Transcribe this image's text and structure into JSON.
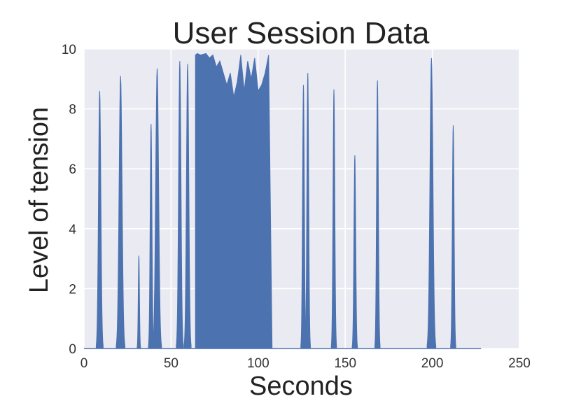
{
  "chart_data": {
    "type": "area",
    "title": "User Session Data",
    "xlabel": "Seconds",
    "ylabel": "Level of tension",
    "xlim": [
      0,
      250
    ],
    "ylim": [
      0,
      10
    ],
    "xticks": [
      "0",
      "50",
      "100",
      "150",
      "200",
      "250"
    ],
    "yticks": [
      "0",
      "2",
      "4",
      "6",
      "8",
      "10"
    ],
    "grid": true,
    "background_color": "#eaeaf2",
    "fill_color": "#4c72b0",
    "x_end": 228,
    "peaks": [
      {
        "center": 9,
        "height": 8.6,
        "half_width": 2
      },
      {
        "center": 21,
        "height": 9.1,
        "half_width": 2.5
      },
      {
        "center": 31.5,
        "height": 3.1,
        "half_width": 1
      },
      {
        "center": 38.5,
        "height": 7.5,
        "half_width": 1.5
      },
      {
        "center": 42,
        "height": 9.35,
        "half_width": 2.5
      },
      {
        "center": 55,
        "height": 9.6,
        "half_width": 2
      },
      {
        "center": 59.5,
        "height": 9.5,
        "half_width": 2
      },
      {
        "center": 126,
        "height": 8.8,
        "half_width": 1.5
      },
      {
        "center": 128.5,
        "height": 9.2,
        "half_width": 1.5
      },
      {
        "center": 143.5,
        "height": 8.65,
        "half_width": 1.5
      },
      {
        "center": 155.5,
        "height": 6.45,
        "half_width": 1.5
      },
      {
        "center": 168.5,
        "height": 8.95,
        "half_width": 1.5
      },
      {
        "center": 199.5,
        "height": 9.7,
        "half_width": 2.5
      },
      {
        "center": 212,
        "height": 7.45,
        "half_width": 1.5
      }
    ],
    "block": {
      "start": 64,
      "end": 108,
      "x": [
        64,
        65,
        67,
        70,
        72,
        74,
        76,
        78,
        80,
        82,
        84,
        86,
        88,
        90,
        92,
        94,
        96,
        98,
        100,
        102,
        104,
        106,
        108
      ],
      "y": [
        9.8,
        9.85,
        9.8,
        9.85,
        9.7,
        9.8,
        9.4,
        9.6,
        9.2,
        8.8,
        9.2,
        8.4,
        8.9,
        9.8,
        8.6,
        9.6,
        9.0,
        9.7,
        8.6,
        8.8,
        9.2,
        9.8,
        0
      ]
    }
  }
}
